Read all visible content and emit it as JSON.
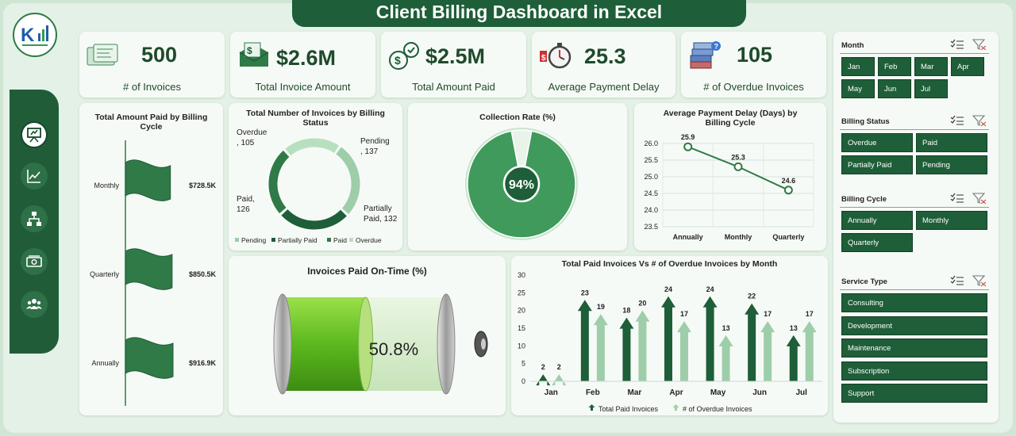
{
  "header": {
    "title": "Client Billing Dashboard in Excel"
  },
  "nav": {
    "items": [
      "presentation-icon",
      "line-chart-icon",
      "hierarchy-icon",
      "money-icon",
      "team-icon"
    ]
  },
  "kpis": [
    {
      "value": "500",
      "label": "# of Invoices",
      "icon": "invoices-icon"
    },
    {
      "value": "$2.6M",
      "label": "Total Invoice Amount",
      "icon": "money-envelope-icon"
    },
    {
      "value": "$2.5M",
      "label": "Total Amount Paid",
      "icon": "money-bag-icon"
    },
    {
      "value": "25.3",
      "label": "Average Payment Delay",
      "icon": "stopwatch-icon"
    },
    {
      "value": "105",
      "label": "# of Overdue Invoices",
      "icon": "overdue-files-icon"
    }
  ],
  "colors": {
    "dark_green": "#1e5e38",
    "mid_green": "#2f7a47",
    "light_green": "#9dcea9",
    "bright_green": "#6fbf2a"
  },
  "panels": {
    "paid_by_cycle": {
      "title": "Total Amount Paid by Billing Cycle"
    },
    "invoices_by_status": {
      "title": "Total Number of Invoices by Billing Status"
    },
    "collection_rate": {
      "title": "Collection Rate (%)"
    },
    "delay_by_cycle": {
      "title": "Average Payment Delay (Days) by Billing Cycle"
    },
    "ontime": {
      "title": "Invoices Paid On-Time (%)"
    },
    "paid_vs_overdue": {
      "title": "Total Paid Invoices Vs # of Overdue Invoices by Month"
    }
  },
  "chart_data": [
    {
      "type": "bar",
      "title": "Total Amount Paid by Billing Cycle",
      "categories": [
        "Monthly",
        "Quarterly",
        "Annually"
      ],
      "values": [
        728.5,
        850.5,
        916.9
      ],
      "labels": [
        "$728.5K",
        "$850.5K",
        "$916.9K"
      ]
    },
    {
      "type": "pie",
      "title": "Total Number of Invoices by Billing Status",
      "categories": [
        "Pending",
        "Partially Paid",
        "Paid",
        "Overdue"
      ],
      "values": [
        137,
        132,
        126,
        105
      ],
      "labels": {
        "overdue_a": "Overdue",
        "overdue_b": ", 105",
        "pending_a": "Pending",
        "pending_b": ", 137",
        "partial_a": "Partially",
        "partial_b": "Paid, 132",
        "paid_a": "Paid,",
        "paid_b": "126"
      },
      "legend": [
        "Pending",
        "Partially Paid",
        "Paid",
        "Overdue"
      ]
    },
    {
      "type": "pie",
      "title": "Collection Rate (%)",
      "values": [
        94,
        6
      ],
      "label": "94%"
    },
    {
      "type": "line",
      "title": "Average Payment Delay (Days) by Billing Cycle",
      "categories": [
        "Annually",
        "Monthly",
        "Quarterly"
      ],
      "values": [
        25.9,
        25.3,
        24.6
      ],
      "labels": [
        "25.9",
        "25.3",
        "24.6"
      ],
      "ylim": [
        23.5,
        26.0
      ],
      "yticks": [
        "26.0",
        "25.5",
        "25.0",
        "24.5",
        "24.0",
        "23.5"
      ],
      "grid": true
    },
    {
      "type": "bar",
      "title": "Invoices Paid On-Time (%)",
      "values": [
        50.8
      ],
      "label": "50.8%"
    },
    {
      "type": "bar",
      "title": "Total Paid Invoices Vs # of Overdue Invoices by Month",
      "categories": [
        "Jan",
        "Feb",
        "Mar",
        "Apr",
        "May",
        "Jun",
        "Jul"
      ],
      "series": [
        {
          "name": "Total Paid Invoices",
          "values": [
            2,
            23,
            18,
            24,
            24,
            22,
            13
          ]
        },
        {
          "name": "# of Overdue Invoices",
          "values": [
            2,
            19,
            20,
            17,
            13,
            17,
            17
          ]
        }
      ],
      "ylim": [
        0,
        30
      ],
      "yticks": [
        "30",
        "25",
        "20",
        "15",
        "10",
        "5",
        "0"
      ]
    }
  ],
  "slicers": [
    {
      "title": "Month",
      "items": [
        "Jan",
        "Feb",
        "Mar",
        "Apr",
        "May",
        "Jun",
        "Jul"
      ]
    },
    {
      "title": "Billing Status",
      "items": [
        "Overdue",
        "Paid",
        "Partially Paid",
        "Pending"
      ]
    },
    {
      "title": "Billing Cycle",
      "items": [
        "Annually",
        "Monthly",
        "Quarterly"
      ]
    },
    {
      "title": "Service Type",
      "items": [
        "Consulting",
        "Development",
        "Maintenance",
        "Subscription",
        "Support"
      ]
    }
  ]
}
